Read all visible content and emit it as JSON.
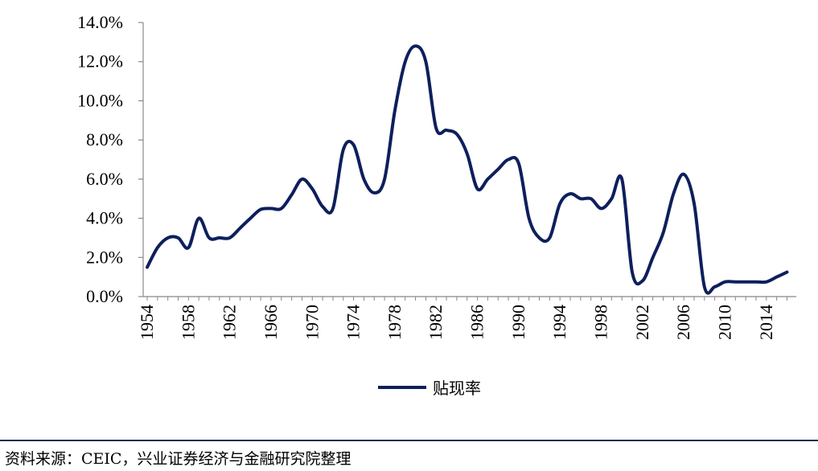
{
  "chart_data": {
    "type": "line",
    "title": "",
    "xlabel": "",
    "ylabel": "",
    "ylim": [
      0,
      14
    ],
    "y_ticks": [
      "0.0%",
      "2.0%",
      "4.0%",
      "6.0%",
      "8.0%",
      "10.0%",
      "12.0%",
      "14.0%"
    ],
    "x_ticks": [
      "1954",
      "1958",
      "1962",
      "1966",
      "1970",
      "1974",
      "1978",
      "1982",
      "1986",
      "1990",
      "1994",
      "1998",
      "2002",
      "2006",
      "2010",
      "2014"
    ],
    "legend_position": "bottom-center",
    "grid": false,
    "line_color": "#0d1f5c",
    "series": [
      {
        "name": "贴现率",
        "x": [
          1954,
          1955,
          1956,
          1957,
          1958,
          1959,
          1960,
          1961,
          1962,
          1963,
          1964,
          1965,
          1966,
          1967,
          1968,
          1969,
          1970,
          1971,
          1972,
          1973,
          1974,
          1975,
          1976,
          1977,
          1978,
          1979,
          1980,
          1981,
          1982,
          1983,
          1984,
          1985,
          1986,
          1987,
          1988,
          1989,
          1990,
          1991,
          1992,
          1993,
          1994,
          1995,
          1996,
          1997,
          1998,
          1999,
          2000,
          2001,
          2002,
          2003,
          2004,
          2005,
          2006,
          2007,
          2008,
          2009,
          2010,
          2011,
          2012,
          2013,
          2014,
          2015,
          2016
        ],
        "values": [
          1.5,
          2.5,
          3.0,
          3.0,
          2.5,
          4.0,
          3.0,
          3.0,
          3.0,
          3.5,
          4.0,
          4.45,
          4.5,
          4.5,
          5.2,
          6.0,
          5.5,
          4.6,
          4.5,
          7.5,
          7.75,
          6.0,
          5.3,
          6.0,
          9.5,
          12.0,
          12.8,
          12.0,
          8.6,
          8.5,
          8.3,
          7.3,
          5.5,
          6.0,
          6.5,
          7.0,
          6.8,
          4.0,
          3.0,
          3.0,
          4.75,
          5.25,
          5.0,
          5.0,
          4.5,
          5.0,
          6.0,
          1.25,
          0.8,
          2.0,
          3.25,
          5.25,
          6.25,
          4.75,
          0.5,
          0.5,
          0.75,
          0.75,
          0.75,
          0.75,
          0.75,
          1.0,
          1.25
        ]
      }
    ]
  },
  "legend": {
    "label": "贴现率"
  },
  "source": "资料来源：CEIC，兴业证券经济与金融研究院整理"
}
